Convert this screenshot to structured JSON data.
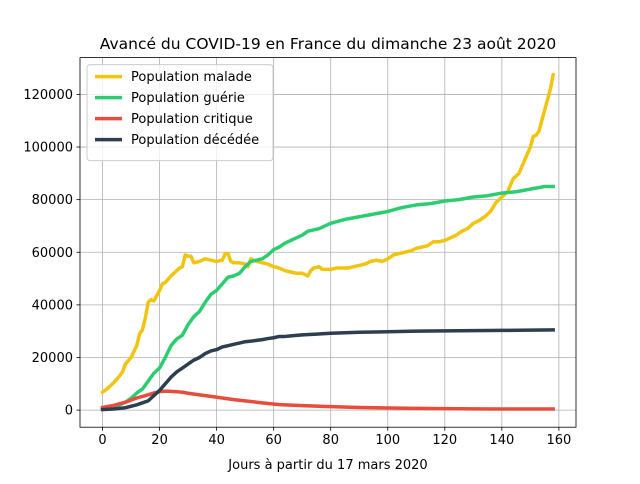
{
  "chart_data": {
    "type": "line",
    "title": "Avancé du COVID-19 en France du dimanche 23 août 2020",
    "xlabel": "Jours à partir du 17 mars 2020",
    "ylabel": "",
    "xlim": [
      -7.9,
      166
    ],
    "ylim": [
      -6500,
      134000
    ],
    "xticks": [
      0,
      20,
      40,
      60,
      80,
      100,
      120,
      140,
      160
    ],
    "yticks": [
      0,
      20000,
      40000,
      60000,
      80000,
      100000,
      120000
    ],
    "grid": true,
    "legend_position": "top-left",
    "series": [
      {
        "name": "Population malade",
        "color": "#f1c40f",
        "points": [
          [
            0,
            6800
          ],
          [
            2,
            8500
          ],
          [
            4,
            10500
          ],
          [
            6,
            13000
          ],
          [
            7,
            14500
          ],
          [
            8,
            17500
          ],
          [
            10,
            20000
          ],
          [
            12,
            24500
          ],
          [
            13,
            29000
          ],
          [
            14,
            30500
          ],
          [
            15,
            35000
          ],
          [
            16,
            41000
          ],
          [
            17,
            42000
          ],
          [
            18,
            41500
          ],
          [
            20,
            45500
          ],
          [
            21,
            48000
          ],
          [
            22,
            48500
          ],
          [
            24,
            51000
          ],
          [
            26,
            53000
          ],
          [
            27,
            54000
          ],
          [
            28,
            54500
          ],
          [
            29,
            59000
          ],
          [
            30,
            58500
          ],
          [
            31,
            58500
          ],
          [
            32,
            56000
          ],
          [
            34,
            56500
          ],
          [
            36,
            57500
          ],
          [
            38,
            57000
          ],
          [
            40,
            56500
          ],
          [
            42,
            57000
          ],
          [
            43,
            59500
          ],
          [
            44,
            59500
          ],
          [
            45,
            56500
          ],
          [
            46,
            56000
          ],
          [
            48,
            56000
          ],
          [
            50,
            55500
          ],
          [
            51,
            54500
          ],
          [
            52,
            57500
          ],
          [
            53,
            57000
          ],
          [
            54,
            56500
          ],
          [
            56,
            56000
          ],
          [
            58,
            55500
          ],
          [
            60,
            54500
          ],
          [
            62,
            54000
          ],
          [
            64,
            53000
          ],
          [
            66,
            52500
          ],
          [
            68,
            52000
          ],
          [
            70,
            52000
          ],
          [
            72,
            51000
          ],
          [
            73,
            53000
          ],
          [
            74,
            54000
          ],
          [
            76,
            54500
          ],
          [
            77,
            53500
          ],
          [
            80,
            53500
          ],
          [
            82,
            54000
          ],
          [
            84,
            54000
          ],
          [
            86,
            54000
          ],
          [
            88,
            54500
          ],
          [
            90,
            55000
          ],
          [
            92,
            55500
          ],
          [
            94,
            56500
          ],
          [
            96,
            57000
          ],
          [
            98,
            56500
          ],
          [
            100,
            57500
          ],
          [
            102,
            59000
          ],
          [
            104,
            59500
          ],
          [
            106,
            60000
          ],
          [
            108,
            60500
          ],
          [
            110,
            61500
          ],
          [
            112,
            62000
          ],
          [
            114,
            62500
          ],
          [
            116,
            64000
          ],
          [
            118,
            64000
          ],
          [
            120,
            64500
          ],
          [
            122,
            65500
          ],
          [
            124,
            66500
          ],
          [
            126,
            68000
          ],
          [
            128,
            69000
          ],
          [
            130,
            71000
          ],
          [
            132,
            72000
          ],
          [
            134,
            73500
          ],
          [
            136,
            75500
          ],
          [
            138,
            79000
          ],
          [
            140,
            81000
          ],
          [
            142,
            83000
          ],
          [
            144,
            88000
          ],
          [
            146,
            90000
          ],
          [
            148,
            95000
          ],
          [
            150,
            100000
          ],
          [
            151,
            104000
          ],
          [
            152,
            104500
          ],
          [
            153,
            106000
          ],
          [
            154,
            110000
          ],
          [
            155,
            114000
          ],
          [
            156,
            118000
          ],
          [
            157,
            122000
          ],
          [
            158,
            127500
          ]
        ]
      },
      {
        "name": "Population guérie",
        "color": "#2ecc71",
        "points": [
          [
            0,
            500
          ],
          [
            2,
            700
          ],
          [
            4,
            1300
          ],
          [
            6,
            2000
          ],
          [
            8,
            3000
          ],
          [
            10,
            4500
          ],
          [
            12,
            6500
          ],
          [
            14,
            8000
          ],
          [
            16,
            11000
          ],
          [
            18,
            14000
          ],
          [
            20,
            16000
          ],
          [
            22,
            20000
          ],
          [
            24,
            24500
          ],
          [
            26,
            27000
          ],
          [
            28,
            28500
          ],
          [
            30,
            32500
          ],
          [
            32,
            35500
          ],
          [
            34,
            37500
          ],
          [
            36,
            41000
          ],
          [
            38,
            44000
          ],
          [
            40,
            45500
          ],
          [
            42,
            48000
          ],
          [
            44,
            50500
          ],
          [
            46,
            51000
          ],
          [
            48,
            52000
          ],
          [
            50,
            54500
          ],
          [
            52,
            56500
          ],
          [
            54,
            57000
          ],
          [
            56,
            57500
          ],
          [
            58,
            59000
          ],
          [
            60,
            61000
          ],
          [
            62,
            62000
          ],
          [
            64,
            63500
          ],
          [
            66,
            64500
          ],
          [
            68,
            65500
          ],
          [
            70,
            66500
          ],
          [
            72,
            68000
          ],
          [
            74,
            68500
          ],
          [
            76,
            69000
          ],
          [
            78,
            70000
          ],
          [
            80,
            71000
          ],
          [
            85,
            72500
          ],
          [
            90,
            73500
          ],
          [
            95,
            74500
          ],
          [
            100,
            75500
          ],
          [
            105,
            77000
          ],
          [
            110,
            78000
          ],
          [
            115,
            78500
          ],
          [
            120,
            79500
          ],
          [
            125,
            80000
          ],
          [
            130,
            81000
          ],
          [
            135,
            81500
          ],
          [
            140,
            82500
          ],
          [
            145,
            83000
          ],
          [
            150,
            84000
          ],
          [
            155,
            85000
          ],
          [
            158,
            85000
          ]
        ]
      },
      {
        "name": "Population critique",
        "color": "#e74c3c",
        "points": [
          [
            0,
            1000
          ],
          [
            4,
            1800
          ],
          [
            8,
            3000
          ],
          [
            12,
            4600
          ],
          [
            16,
            5800
          ],
          [
            18,
            6500
          ],
          [
            20,
            7000
          ],
          [
            22,
            7200
          ],
          [
            24,
            7100
          ],
          [
            26,
            7000
          ],
          [
            28,
            6800
          ],
          [
            30,
            6400
          ],
          [
            34,
            5800
          ],
          [
            38,
            5200
          ],
          [
            42,
            4600
          ],
          [
            46,
            4000
          ],
          [
            50,
            3500
          ],
          [
            54,
            3000
          ],
          [
            58,
            2500
          ],
          [
            62,
            2100
          ],
          [
            66,
            1900
          ],
          [
            70,
            1700
          ],
          [
            75,
            1500
          ],
          [
            80,
            1300
          ],
          [
            90,
            1000
          ],
          [
            100,
            800
          ],
          [
            110,
            650
          ],
          [
            120,
            550
          ],
          [
            130,
            450
          ],
          [
            140,
            420
          ],
          [
            150,
            400
          ],
          [
            158,
            420
          ]
        ]
      },
      {
        "name": "Population décédée",
        "color": "#2c3e50",
        "points": [
          [
            0,
            200
          ],
          [
            4,
            400
          ],
          [
            8,
            900
          ],
          [
            12,
            2000
          ],
          [
            16,
            3500
          ],
          [
            18,
            5500
          ],
          [
            20,
            7500
          ],
          [
            22,
            10000
          ],
          [
            24,
            12500
          ],
          [
            26,
            14500
          ],
          [
            28,
            16000
          ],
          [
            30,
            17500
          ],
          [
            32,
            19000
          ],
          [
            34,
            20000
          ],
          [
            36,
            21500
          ],
          [
            38,
            22500
          ],
          [
            40,
            23000
          ],
          [
            42,
            24000
          ],
          [
            44,
            24500
          ],
          [
            46,
            25000
          ],
          [
            48,
            25500
          ],
          [
            50,
            26000
          ],
          [
            52,
            26200
          ],
          [
            54,
            26500
          ],
          [
            56,
            26800
          ],
          [
            58,
            27200
          ],
          [
            60,
            27500
          ],
          [
            62,
            28000
          ],
          [
            64,
            28000
          ],
          [
            66,
            28200
          ],
          [
            68,
            28400
          ],
          [
            70,
            28600
          ],
          [
            75,
            28900
          ],
          [
            80,
            29200
          ],
          [
            90,
            29600
          ],
          [
            100,
            29800
          ],
          [
            110,
            30000
          ],
          [
            120,
            30100
          ],
          [
            130,
            30200
          ],
          [
            140,
            30300
          ],
          [
            150,
            30400
          ],
          [
            158,
            30500
          ]
        ]
      }
    ]
  }
}
